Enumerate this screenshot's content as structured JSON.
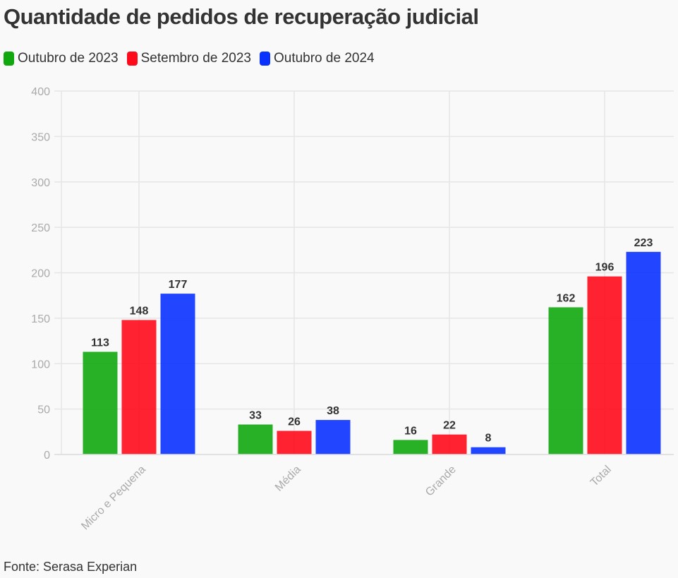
{
  "title": "Quantidade de pedidos de recuperação judicial",
  "footer": "Fonte: Serasa Experian",
  "chart_data": {
    "type": "bar",
    "title": "Quantidade de pedidos de recuperação judicial",
    "categories": [
      "Micro e Pequena",
      "Média",
      "Grande",
      "Total"
    ],
    "series": [
      {
        "name": "Outubro de 2023",
        "color": "#11a80f",
        "values": [
          113,
          33,
          16,
          162
        ]
      },
      {
        "name": "Setembro de 2023",
        "color": "#ff0a1a",
        "values": [
          148,
          26,
          22,
          196
        ]
      },
      {
        "name": "Outubro de 2024",
        "color": "#0a32ff",
        "values": [
          177,
          38,
          8,
          223
        ]
      }
    ],
    "ylim": [
      0,
      400
    ],
    "yticks": [
      0,
      50,
      100,
      150,
      200,
      250,
      300,
      350,
      400
    ],
    "grid": true,
    "legend": "top-left",
    "xlabel": "",
    "ylabel": ""
  }
}
